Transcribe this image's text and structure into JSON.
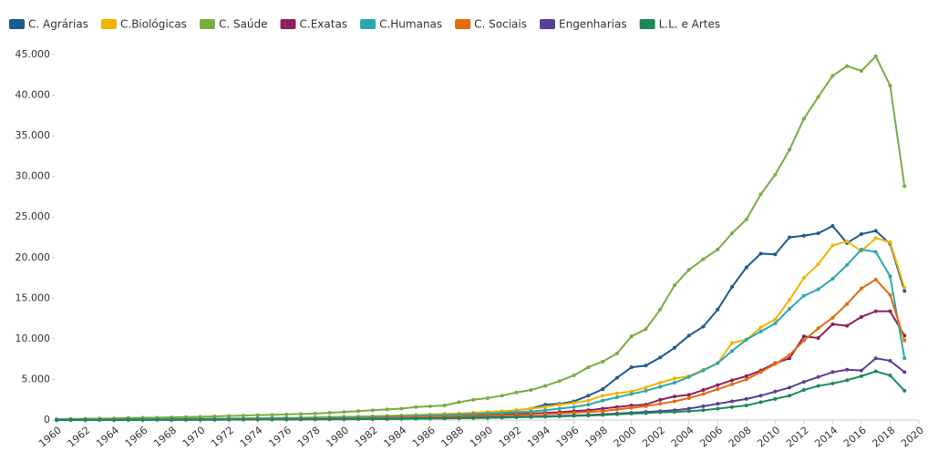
{
  "chart_data": {
    "type": "line",
    "x": [
      1960,
      1961,
      1962,
      1963,
      1964,
      1965,
      1966,
      1967,
      1968,
      1969,
      1970,
      1971,
      1972,
      1973,
      1974,
      1975,
      1976,
      1977,
      1978,
      1979,
      1980,
      1981,
      1982,
      1983,
      1984,
      1985,
      1986,
      1987,
      1988,
      1989,
      1990,
      1991,
      1992,
      1993,
      1994,
      1995,
      1996,
      1997,
      1998,
      1999,
      2000,
      2001,
      2002,
      2003,
      2004,
      2005,
      2006,
      2007,
      2008,
      2009,
      2010,
      2011,
      2012,
      2013,
      2014,
      2015,
      2016,
      2017,
      2018,
      2019
    ],
    "series": [
      {
        "name": "C. Agrárias",
        "color": "#1f5a8f",
        "values": [
          60,
          70,
          80,
          90,
          100,
          110,
          120,
          130,
          140,
          150,
          160,
          170,
          180,
          200,
          220,
          240,
          260,
          280,
          300,
          320,
          350,
          380,
          400,
          450,
          500,
          550,
          600,
          650,
          700,
          800,
          900,
          1000,
          1200,
          1400,
          1900,
          2000,
          2300,
          3000,
          3800,
          5200,
          6500,
          6700,
          7700,
          8900,
          10400,
          11500,
          13600,
          16400,
          18800,
          20500,
          20400,
          22500,
          22700,
          23000,
          23900,
          21800,
          22900,
          23300,
          21700,
          15900
        ]
      },
      {
        "name": "C.Biológicas",
        "color": "#f2b400",
        "values": [
          40,
          50,
          60,
          70,
          80,
          90,
          100,
          110,
          120,
          130,
          140,
          150,
          170,
          190,
          210,
          230,
          260,
          290,
          320,
          360,
          400,
          440,
          480,
          530,
          580,
          640,
          700,
          760,
          830,
          900,
          1000,
          1100,
          1200,
          1400,
          1600,
          1900,
          2100,
          2400,
          3000,
          3300,
          3500,
          4000,
          4600,
          5100,
          5400,
          6200,
          7000,
          9500,
          9900,
          11400,
          12400,
          14800,
          17500,
          19200,
          21500,
          22000,
          20800,
          22400,
          21900,
          16300
        ]
      },
      {
        "name": "C. Saúde",
        "color": "#7aac44",
        "values": [
          100,
          120,
          150,
          180,
          200,
          250,
          280,
          300,
          330,
          360,
          400,
          450,
          500,
          550,
          600,
          650,
          700,
          750,
          800,
          900,
          1000,
          1100,
          1200,
          1300,
          1400,
          1600,
          1700,
          1800,
          2200,
          2500,
          2700,
          3000,
          3400,
          3700,
          4200,
          4800,
          5500,
          6500,
          7200,
          8200,
          10300,
          11200,
          13600,
          16600,
          18500,
          19800,
          21000,
          23000,
          24700,
          27800,
          30200,
          33300,
          37100,
          39800,
          42400,
          43600,
          43000,
          44800,
          41200,
          28800
        ]
      },
      {
        "name": "C.Exatas",
        "color": "#8e1f5a",
        "values": [
          20,
          25,
          30,
          35,
          40,
          45,
          50,
          55,
          60,
          65,
          70,
          80,
          90,
          100,
          110,
          130,
          150,
          170,
          190,
          210,
          240,
          270,
          300,
          330,
          360,
          400,
          440,
          480,
          520,
          570,
          620,
          680,
          740,
          800,
          880,
          970,
          1100,
          1200,
          1400,
          1600,
          1800,
          1900,
          2500,
          2900,
          3100,
          3700,
          4300,
          4900,
          5400,
          6100,
          7000,
          7600,
          10300,
          10100,
          11800,
          11600,
          12700,
          13400,
          13400,
          10400
        ]
      },
      {
        "name": "C.Humanas",
        "color": "#2aa8b0",
        "values": [
          30,
          40,
          50,
          60,
          70,
          80,
          90,
          100,
          110,
          120,
          130,
          140,
          150,
          170,
          190,
          210,
          230,
          250,
          280,
          310,
          340,
          370,
          400,
          440,
          480,
          520,
          570,
          620,
          680,
          740,
          800,
          870,
          950,
          1050,
          1200,
          1400,
          1600,
          1900,
          2400,
          2800,
          3200,
          3600,
          4100,
          4600,
          5300,
          6100,
          7000,
          8500,
          9900,
          10900,
          11900,
          13700,
          15300,
          16100,
          17400,
          19100,
          21000,
          20700,
          17700,
          7600
        ]
      },
      {
        "name": "C. Sociais",
        "color": "#e36c0a",
        "values": [
          20,
          25,
          30,
          35,
          40,
          45,
          50,
          55,
          60,
          65,
          70,
          80,
          90,
          100,
          110,
          120,
          130,
          150,
          170,
          190,
          210,
          230,
          250,
          280,
          310,
          340,
          370,
          400,
          440,
          480,
          520,
          560,
          610,
          670,
          740,
          820,
          900,
          1000,
          1100,
          1300,
          1500,
          1700,
          2000,
          2300,
          2700,
          3200,
          3800,
          4400,
          5000,
          5900,
          6900,
          8000,
          9800,
          11300,
          12600,
          14300,
          16200,
          17300,
          15400,
          9800
        ]
      },
      {
        "name": "Engenharias",
        "color": "#5a3f99",
        "values": [
          10,
          12,
          15,
          18,
          20,
          22,
          25,
          28,
          30,
          35,
          40,
          45,
          50,
          55,
          60,
          70,
          80,
          90,
          100,
          110,
          120,
          130,
          140,
          160,
          180,
          200,
          220,
          240,
          260,
          290,
          320,
          350,
          380,
          420,
          460,
          510,
          560,
          620,
          700,
          800,
          900,
          1000,
          1100,
          1200,
          1400,
          1700,
          2000,
          2300,
          2600,
          3000,
          3500,
          4000,
          4700,
          5300,
          5900,
          6200,
          6100,
          7600,
          7300,
          5900
        ]
      },
      {
        "name": "L.L. e Artes",
        "color": "#1a8a5a",
        "values": [
          5,
          8,
          10,
          12,
          15,
          18,
          20,
          22,
          25,
          28,
          30,
          35,
          40,
          45,
          50,
          55,
          60,
          70,
          80,
          90,
          100,
          110,
          120,
          130,
          140,
          160,
          180,
          200,
          220,
          240,
          270,
          300,
          330,
          360,
          400,
          450,
          500,
          550,
          620,
          700,
          780,
          860,
          950,
          1000,
          1100,
          1200,
          1400,
          1600,
          1800,
          2200,
          2600,
          3000,
          3700,
          4200,
          4500,
          4900,
          5400,
          6000,
          5500,
          3600
        ]
      }
    ],
    "xlim": [
      1960,
      2020
    ],
    "xticks": [
      1960,
      1962,
      1964,
      1966,
      1968,
      1970,
      1972,
      1974,
      1976,
      1978,
      1980,
      1982,
      1984,
      1986,
      1988,
      1990,
      1992,
      1994,
      1996,
      1998,
      2000,
      2002,
      2004,
      2006,
      2008,
      2010,
      2012,
      2014,
      2016,
      2018,
      2020
    ],
    "ylim": [
      0,
      45000
    ],
    "yticks": [
      0,
      {
        "value": 5000,
        "label": "5.000"
      },
      {
        "value": 10000,
        "label": "10.000"
      },
      {
        "value": 15000,
        "label": "15.000"
      },
      {
        "value": 20000,
        "label": "20.000"
      },
      {
        "value": 25000,
        "label": "25.000"
      },
      {
        "value": 30000,
        "label": "30.000"
      },
      {
        "value": 35000,
        "label": "35.000"
      },
      {
        "value": 40000,
        "label": "40.000"
      },
      {
        "value": 45000,
        "label": "45.000"
      }
    ],
    "grid": false
  }
}
